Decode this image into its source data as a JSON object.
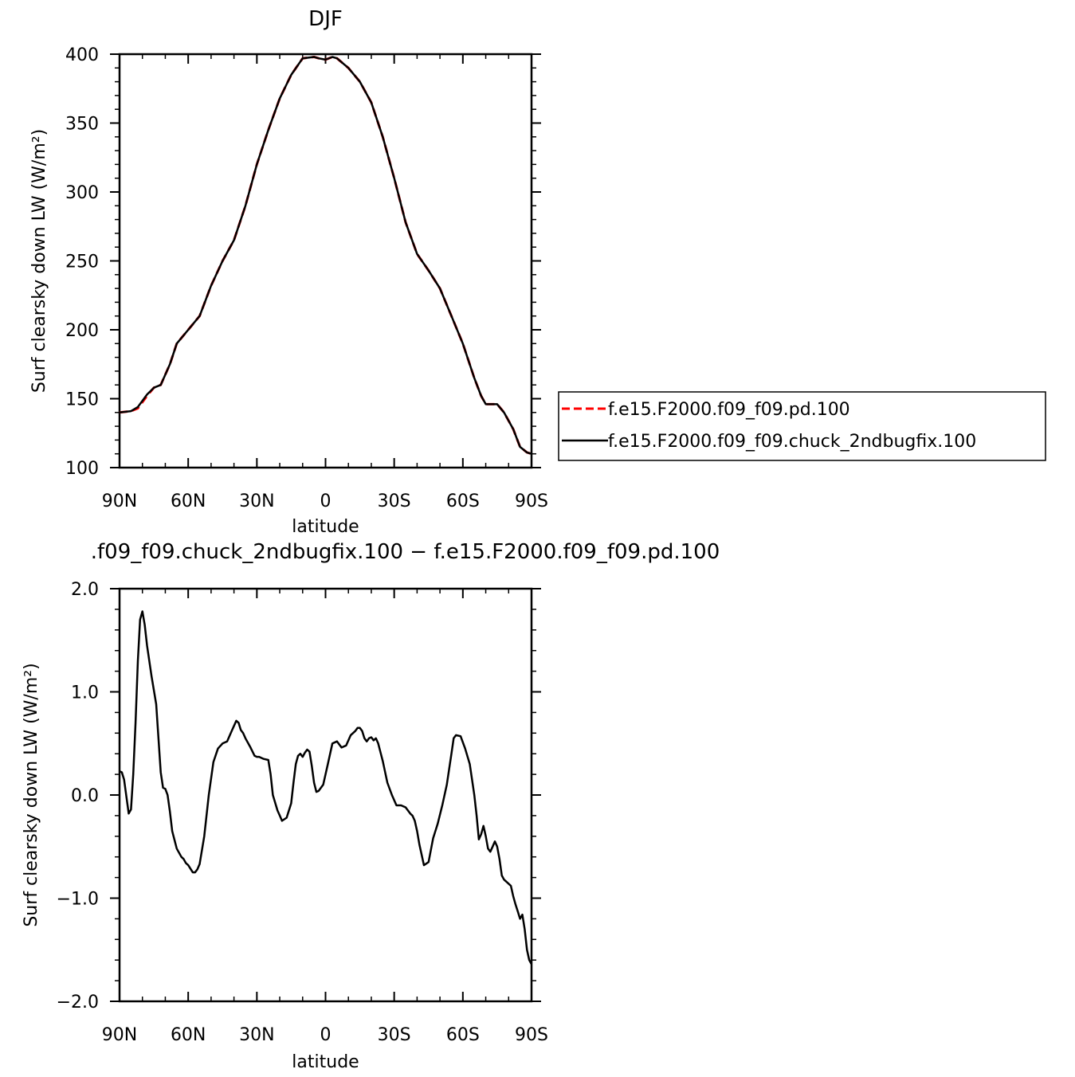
{
  "chart_data": [
    {
      "type": "line",
      "title": "DJF",
      "xlabel": "latitude",
      "ylabel": "Surf clearsky down LW (W/m²)",
      "xlim": [
        -90,
        90
      ],
      "ylim": [
        100,
        400
      ],
      "xticks": [
        -90,
        -60,
        -30,
        0,
        30,
        60,
        90
      ],
      "xtick_labels": [
        "90N",
        "60N",
        "30N",
        "0",
        "30S",
        "60S",
        "90S"
      ],
      "yticks": [
        100,
        150,
        200,
        250,
        300,
        350,
        400
      ],
      "ytick_labels": [
        "100",
        "150",
        "200",
        "250",
        "300",
        "350",
        "400"
      ],
      "grid": false,
      "legend": "right",
      "series": [
        {
          "name": "f.e15.F2000.f09_f09.pd.100",
          "color": "#ff0000",
          "dash": "dashed",
          "x": [
            -90,
            -85,
            -82,
            -78,
            -75,
            -72,
            -68,
            -65,
            -60,
            -55,
            -50,
            -45,
            -40,
            -35,
            -30,
            -25,
            -20,
            -15,
            -10,
            -5,
            -3,
            0,
            3,
            5,
            10,
            15,
            20,
            25,
            30,
            35,
            40,
            45,
            50,
            55,
            60,
            65,
            68,
            70,
            75,
            78,
            82,
            85,
            88,
            90
          ],
          "y": [
            140,
            141,
            143,
            152,
            158,
            160,
            175,
            190,
            200,
            210,
            232,
            250,
            265,
            290,
            320,
            345,
            368,
            385,
            397,
            398,
            397,
            396,
            398,
            397,
            390,
            380,
            365,
            340,
            310,
            278,
            255,
            243,
            230,
            210,
            190,
            165,
            152,
            146,
            146,
            140,
            128,
            115,
            111,
            110
          ]
        },
        {
          "name": "f.e15.F2000.f09_f09.chuck_2ndbugfix.100",
          "color": "#000000",
          "dash": "solid",
          "x": [
            -90,
            -85,
            -82,
            -78,
            -75,
            -72,
            -68,
            -65,
            -60,
            -55,
            -50,
            -45,
            -40,
            -35,
            -30,
            -25,
            -20,
            -15,
            -10,
            -5,
            -3,
            0,
            3,
            5,
            10,
            15,
            20,
            25,
            30,
            35,
            40,
            45,
            50,
            55,
            60,
            65,
            68,
            70,
            75,
            78,
            82,
            85,
            88,
            90
          ],
          "y": [
            140,
            141,
            144,
            153,
            158,
            160,
            175,
            190,
            200,
            210,
            232,
            250,
            265,
            290,
            320,
            345,
            368,
            385,
            397,
            398,
            397,
            396,
            398,
            397,
            390,
            380,
            365,
            340,
            310,
            278,
            255,
            243,
            230,
            210,
            190,
            165,
            152,
            146,
            146,
            140,
            128,
            115,
            111,
            110
          ]
        }
      ]
    },
    {
      "type": "line",
      "title": ".f09_f09.chuck_2ndbugfix.100 − f.e15.F2000.f09_f09.pd.100",
      "xlabel": "latitude",
      "ylabel": "Surf clearsky down LW (W/m²)",
      "xlim": [
        -90,
        90
      ],
      "ylim": [
        -2.0,
        2.0
      ],
      "xticks": [
        -90,
        -60,
        -30,
        0,
        30,
        60,
        90
      ],
      "xtick_labels": [
        "90N",
        "60N",
        "30N",
        "0",
        "30S",
        "60S",
        "90S"
      ],
      "yticks": [
        -2.0,
        -1.0,
        0.0,
        1.0,
        2.0
      ],
      "ytick_labels": [
        "−2.0",
        "−1.0",
        "0.0",
        "1.0",
        "2.0"
      ],
      "grid": false,
      "series": [
        {
          "color": "#000000",
          "dash": "solid",
          "x": [
            -90,
            -89,
            -88,
            -86,
            -85,
            -84,
            -83,
            -82,
            -81,
            -80,
            -79,
            -78,
            -76,
            -74,
            -72,
            -71,
            -70,
            -69,
            -68,
            -67,
            -65,
            -63,
            -62,
            -61,
            -60,
            -58,
            -57,
            -56,
            -55,
            -53,
            -51,
            -49,
            -47,
            -45,
            -43,
            -41,
            -39,
            -38,
            -37,
            -36,
            -35,
            -33,
            -31,
            -30,
            -29,
            -27,
            -25,
            -24,
            -23,
            -21,
            -20,
            -19,
            -17,
            -15,
            -14,
            -13,
            -12,
            -11,
            -10,
            -9,
            -8,
            -7,
            -6,
            -5,
            -4,
            -3,
            -1,
            1,
            3,
            5,
            7,
            9,
            11,
            13,
            14,
            15,
            16,
            17,
            18,
            19,
            20,
            21,
            22,
            23,
            25,
            27,
            29,
            31,
            32,
            33,
            35,
            37,
            38,
            39,
            40,
            41,
            43,
            45,
            47,
            49,
            51,
            53,
            55,
            56,
            57,
            59,
            61,
            63,
            65,
            66,
            67,
            68,
            69,
            70,
            71,
            72,
            73,
            74,
            75,
            76,
            77,
            78,
            80,
            81,
            82,
            83,
            84,
            85,
            86,
            87,
            88,
            89,
            90
          ],
          "y": [
            0.23,
            0.22,
            0.15,
            -0.18,
            -0.14,
            0.2,
            0.7,
            1.3,
            1.7,
            1.78,
            1.65,
            1.45,
            1.15,
            0.88,
            0.22,
            0.07,
            0.06,
            0.0,
            -0.16,
            -0.35,
            -0.52,
            -0.6,
            -0.62,
            -0.66,
            -0.68,
            -0.75,
            -0.75,
            -0.72,
            -0.67,
            -0.4,
            0.0,
            0.32,
            0.45,
            0.5,
            0.52,
            0.62,
            0.72,
            0.7,
            0.63,
            0.6,
            0.55,
            0.47,
            0.38,
            0.37,
            0.37,
            0.35,
            0.34,
            0.2,
            0.0,
            -0.15,
            -0.2,
            -0.25,
            -0.22,
            -0.08,
            0.12,
            0.3,
            0.38,
            0.4,
            0.37,
            0.41,
            0.44,
            0.42,
            0.28,
            0.12,
            0.03,
            0.04,
            0.1,
            0.3,
            0.5,
            0.52,
            0.46,
            0.48,
            0.58,
            0.62,
            0.65,
            0.65,
            0.62,
            0.55,
            0.52,
            0.55,
            0.56,
            0.53,
            0.55,
            0.5,
            0.33,
            0.12,
            0.0,
            -0.1,
            -0.1,
            -0.1,
            -0.12,
            -0.18,
            -0.2,
            -0.25,
            -0.35,
            -0.48,
            -0.68,
            -0.65,
            -0.42,
            -0.28,
            -0.1,
            0.1,
            0.4,
            0.55,
            0.58,
            0.57,
            0.45,
            0.3,
            0.0,
            -0.2,
            -0.43,
            -0.38,
            -0.3,
            -0.4,
            -0.52,
            -0.55,
            -0.5,
            -0.45,
            -0.5,
            -0.62,
            -0.78,
            -0.82,
            -0.86,
            -0.88,
            -0.98,
            -1.06,
            -1.13,
            -1.2,
            -1.16,
            -1.3,
            -1.5,
            -1.6,
            -1.64
          ]
        }
      ]
    }
  ]
}
